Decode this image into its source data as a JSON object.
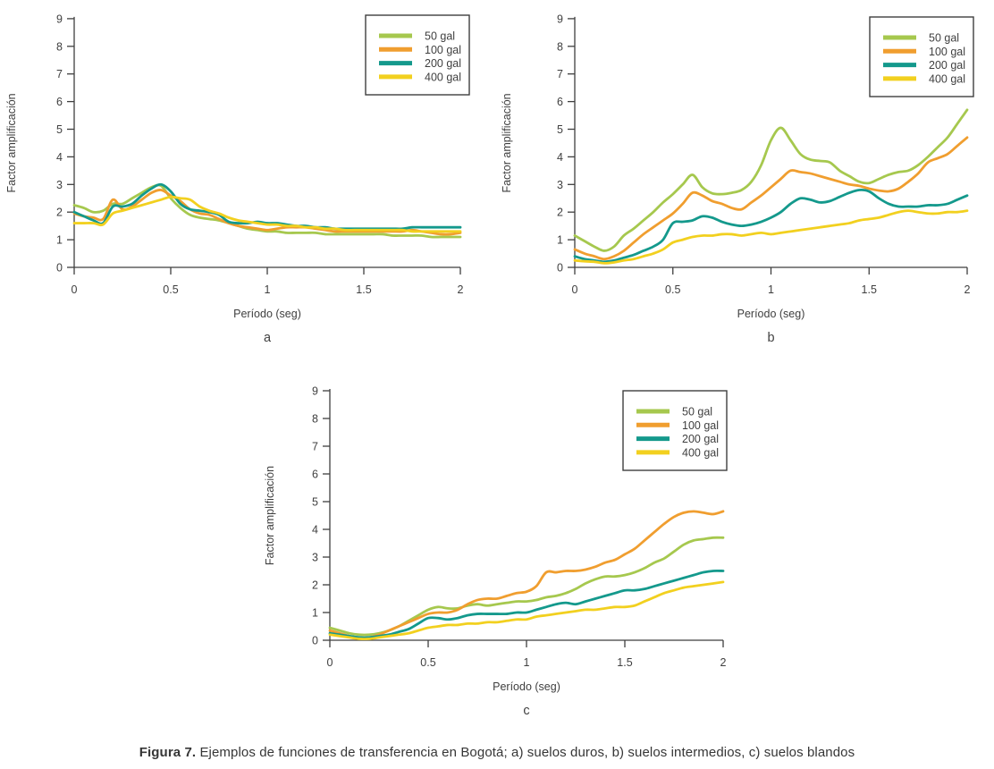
{
  "figure": {
    "caption_prefix": "Figura 7.",
    "caption_text": " Ejemplos de funciones de transferencia en Bogotá; a) suelos duros, b) suelos intermedios, c) suelos blandos"
  },
  "colors": {
    "background": "#ffffff",
    "axis": "#3f3f3f",
    "text": "#3f3f3f",
    "legend_border": "#3f3f3f",
    "series_50_gal": "#a6c84e",
    "series_100_gal": "#f09e2f",
    "series_200_gal": "#14998c",
    "series_400_gal": "#f2d01f"
  },
  "chart_data": [
    {
      "id": "a",
      "type": "line",
      "panel_label": "a",
      "subject": "suelos duros",
      "title": "",
      "xlabel": "Período (seg)",
      "ylabel": "Factor amplificación",
      "xlim": [
        0,
        2
      ],
      "ylim": [
        0,
        9
      ],
      "xticks": [
        0,
        0.5,
        1,
        1.5,
        2
      ],
      "xtick_labels": [
        "0",
        "0.5",
        "1",
        "1.5",
        "2"
      ],
      "ytick_step": 1,
      "grid": false,
      "legend_position": "top-right",
      "x": [
        0,
        0.05,
        0.1,
        0.15,
        0.2,
        0.25,
        0.3,
        0.35,
        0.4,
        0.45,
        0.5,
        0.55,
        0.6,
        0.65,
        0.7,
        0.75,
        0.8,
        0.85,
        0.9,
        0.95,
        1,
        1.05,
        1.1,
        1.15,
        1.2,
        1.25,
        1.3,
        1.35,
        1.4,
        1.45,
        1.5,
        1.55,
        1.6,
        1.65,
        1.7,
        1.75,
        1.8,
        1.85,
        1.9,
        1.95,
        2
      ],
      "series": [
        {
          "name": "50 gal",
          "color": "#a6c84e",
          "values": [
            2.25,
            2.15,
            2.0,
            2.05,
            2.3,
            2.3,
            2.5,
            2.7,
            2.9,
            2.95,
            2.5,
            2.15,
            1.9,
            1.8,
            1.75,
            1.7,
            1.6,
            1.5,
            1.4,
            1.35,
            1.3,
            1.3,
            1.25,
            1.25,
            1.25,
            1.25,
            1.2,
            1.2,
            1.2,
            1.2,
            1.2,
            1.2,
            1.2,
            1.15,
            1.15,
            1.15,
            1.15,
            1.1,
            1.1,
            1.1,
            1.1
          ]
        },
        {
          "name": "100 gal",
          "color": "#f09e2f",
          "values": [
            1.95,
            1.85,
            1.8,
            1.75,
            2.45,
            2.1,
            2.2,
            2.45,
            2.7,
            2.8,
            2.6,
            2.4,
            2.1,
            1.95,
            1.9,
            1.75,
            1.6,
            1.5,
            1.45,
            1.4,
            1.35,
            1.4,
            1.45,
            1.45,
            1.45,
            1.4,
            1.35,
            1.3,
            1.3,
            1.3,
            1.3,
            1.3,
            1.3,
            1.3,
            1.3,
            1.35,
            1.3,
            1.25,
            1.2,
            1.2,
            1.25
          ]
        },
        {
          "name": "200 gal",
          "color": "#14998c",
          "values": [
            2.0,
            1.85,
            1.7,
            1.6,
            2.2,
            2.2,
            2.3,
            2.6,
            2.85,
            3.0,
            2.75,
            2.3,
            2.1,
            2.05,
            2.0,
            1.9,
            1.65,
            1.6,
            1.6,
            1.65,
            1.6,
            1.6,
            1.55,
            1.5,
            1.5,
            1.45,
            1.45,
            1.4,
            1.4,
            1.4,
            1.4,
            1.4,
            1.4,
            1.4,
            1.4,
            1.45,
            1.45,
            1.45,
            1.45,
            1.45,
            1.45
          ]
        },
        {
          "name": "400 gal",
          "color": "#f2d01f",
          "values": [
            1.6,
            1.6,
            1.6,
            1.55,
            1.95,
            2.05,
            2.15,
            2.25,
            2.35,
            2.45,
            2.55,
            2.5,
            2.45,
            2.2,
            2.05,
            1.95,
            1.8,
            1.7,
            1.65,
            1.6,
            1.55,
            1.55,
            1.5,
            1.5,
            1.45,
            1.45,
            1.4,
            1.4,
            1.35,
            1.35,
            1.35,
            1.35,
            1.35,
            1.35,
            1.35,
            1.3,
            1.3,
            1.3,
            1.3,
            1.3,
            1.3
          ]
        }
      ]
    },
    {
      "id": "b",
      "type": "line",
      "panel_label": "b",
      "subject": "suelos intermedios",
      "title": "",
      "xlabel": "Período (seg)",
      "ylabel": "Factor amplificación",
      "xlim": [
        0,
        2
      ],
      "ylim": [
        0,
        9
      ],
      "xticks": [
        0,
        0.5,
        1,
        1.5,
        2
      ],
      "xtick_labels": [
        "0",
        "0.5",
        "1",
        "1.5",
        "2"
      ],
      "ytick_step": 1,
      "grid": false,
      "legend_position": "top-right",
      "x": [
        0,
        0.05,
        0.1,
        0.15,
        0.2,
        0.25,
        0.3,
        0.35,
        0.4,
        0.45,
        0.5,
        0.55,
        0.6,
        0.65,
        0.7,
        0.75,
        0.8,
        0.85,
        0.9,
        0.95,
        1,
        1.05,
        1.1,
        1.15,
        1.2,
        1.25,
        1.3,
        1.35,
        1.4,
        1.45,
        1.5,
        1.55,
        1.6,
        1.65,
        1.7,
        1.75,
        1.8,
        1.85,
        1.9,
        1.95,
        2
      ],
      "series": [
        {
          "name": "50 gal",
          "color": "#a6c84e",
          "values": [
            1.15,
            0.95,
            0.75,
            0.6,
            0.75,
            1.15,
            1.4,
            1.7,
            2.0,
            2.35,
            2.65,
            3.0,
            3.35,
            2.9,
            2.68,
            2.65,
            2.7,
            2.8,
            3.1,
            3.7,
            4.6,
            5.05,
            4.6,
            4.1,
            3.9,
            3.85,
            3.8,
            3.5,
            3.3,
            3.1,
            3.05,
            3.2,
            3.35,
            3.45,
            3.5,
            3.7,
            4.0,
            4.35,
            4.7,
            5.2,
            5.7
          ]
        },
        {
          "name": "100 gal",
          "color": "#f09e2f",
          "values": [
            0.65,
            0.5,
            0.4,
            0.3,
            0.4,
            0.6,
            0.9,
            1.2,
            1.45,
            1.7,
            1.95,
            2.3,
            2.7,
            2.6,
            2.4,
            2.3,
            2.15,
            2.1,
            2.35,
            2.6,
            2.9,
            3.2,
            3.5,
            3.45,
            3.4,
            3.3,
            3.2,
            3.1,
            3.0,
            2.95,
            2.85,
            2.78,
            2.75,
            2.85,
            3.1,
            3.4,
            3.8,
            3.95,
            4.1,
            4.4,
            4.7
          ]
        },
        {
          "name": "200 gal",
          "color": "#14998c",
          "values": [
            0.4,
            0.3,
            0.25,
            0.2,
            0.25,
            0.35,
            0.45,
            0.6,
            0.75,
            1.0,
            1.6,
            1.65,
            1.7,
            1.85,
            1.8,
            1.65,
            1.55,
            1.5,
            1.55,
            1.65,
            1.8,
            2.0,
            2.3,
            2.5,
            2.45,
            2.35,
            2.4,
            2.55,
            2.7,
            2.8,
            2.75,
            2.5,
            2.3,
            2.2,
            2.2,
            2.2,
            2.25,
            2.25,
            2.3,
            2.45,
            2.6
          ]
        },
        {
          "name": "400 gal",
          "color": "#f2d01f",
          "values": [
            0.25,
            0.22,
            0.2,
            0.15,
            0.18,
            0.25,
            0.3,
            0.4,
            0.5,
            0.65,
            0.9,
            1.0,
            1.1,
            1.15,
            1.15,
            1.2,
            1.2,
            1.15,
            1.2,
            1.25,
            1.2,
            1.25,
            1.3,
            1.35,
            1.4,
            1.45,
            1.5,
            1.55,
            1.6,
            1.7,
            1.75,
            1.8,
            1.9,
            2.0,
            2.05,
            2.0,
            1.95,
            1.95,
            2.0,
            2.0,
            2.05
          ]
        }
      ]
    },
    {
      "id": "c",
      "type": "line",
      "panel_label": "c",
      "subject": "suelos blandos",
      "title": "",
      "xlabel": "Período (seg)",
      "ylabel": "Factor amplificación",
      "xlim": [
        0,
        2
      ],
      "ylim": [
        0,
        9
      ],
      "xticks": [
        0,
        0.5,
        1,
        1.5,
        2
      ],
      "xtick_labels": [
        "0",
        "0.5",
        "1",
        "1.5",
        "2"
      ],
      "ytick_step": 1,
      "grid": false,
      "legend_position": "top-right",
      "x": [
        0,
        0.05,
        0.1,
        0.15,
        0.2,
        0.25,
        0.3,
        0.35,
        0.4,
        0.45,
        0.5,
        0.55,
        0.6,
        0.65,
        0.7,
        0.75,
        0.8,
        0.85,
        0.9,
        0.95,
        1,
        1.05,
        1.1,
        1.15,
        1.2,
        1.25,
        1.3,
        1.35,
        1.4,
        1.45,
        1.5,
        1.55,
        1.6,
        1.65,
        1.7,
        1.75,
        1.8,
        1.85,
        1.9,
        1.95,
        2
      ],
      "series": [
        {
          "name": "50 gal",
          "color": "#a6c84e",
          "values": [
            0.45,
            0.35,
            0.25,
            0.2,
            0.2,
            0.25,
            0.35,
            0.5,
            0.7,
            0.9,
            1.1,
            1.2,
            1.15,
            1.15,
            1.25,
            1.3,
            1.25,
            1.3,
            1.35,
            1.4,
            1.4,
            1.45,
            1.55,
            1.6,
            1.7,
            1.85,
            2.05,
            2.2,
            2.3,
            2.3,
            2.35,
            2.45,
            2.6,
            2.8,
            2.95,
            3.2,
            3.45,
            3.6,
            3.65,
            3.7,
            3.7
          ]
        },
        {
          "name": "100 gal",
          "color": "#f09e2f",
          "values": [
            0.35,
            0.25,
            0.15,
            0.1,
            0.1,
            0.2,
            0.35,
            0.5,
            0.65,
            0.8,
            0.95,
            1.0,
            1.0,
            1.1,
            1.3,
            1.45,
            1.5,
            1.5,
            1.6,
            1.7,
            1.75,
            1.95,
            2.45,
            2.45,
            2.5,
            2.5,
            2.55,
            2.65,
            2.8,
            2.9,
            3.1,
            3.3,
            3.6,
            3.9,
            4.2,
            4.45,
            4.6,
            4.65,
            4.6,
            4.55,
            4.65
          ]
        },
        {
          "name": "200 gal",
          "color": "#14998c",
          "values": [
            0.25,
            0.2,
            0.15,
            0.1,
            0.1,
            0.15,
            0.2,
            0.3,
            0.4,
            0.6,
            0.8,
            0.8,
            0.75,
            0.8,
            0.9,
            0.95,
            0.95,
            0.95,
            0.95,
            1.0,
            1.0,
            1.1,
            1.2,
            1.3,
            1.35,
            1.3,
            1.4,
            1.5,
            1.6,
            1.7,
            1.8,
            1.8,
            1.85,
            1.95,
            2.05,
            2.15,
            2.25,
            2.35,
            2.45,
            2.5,
            2.5
          ]
        },
        {
          "name": "400 gal",
          "color": "#f2d01f",
          "values": [
            0.2,
            0.15,
            0.1,
            0.05,
            0.05,
            0.1,
            0.15,
            0.2,
            0.25,
            0.35,
            0.45,
            0.5,
            0.55,
            0.55,
            0.6,
            0.6,
            0.65,
            0.65,
            0.7,
            0.75,
            0.75,
            0.85,
            0.9,
            0.95,
            1.0,
            1.05,
            1.1,
            1.1,
            1.15,
            1.2,
            1.2,
            1.25,
            1.4,
            1.55,
            1.7,
            1.8,
            1.9,
            1.95,
            2.0,
            2.05,
            2.1
          ]
        }
      ]
    }
  ]
}
